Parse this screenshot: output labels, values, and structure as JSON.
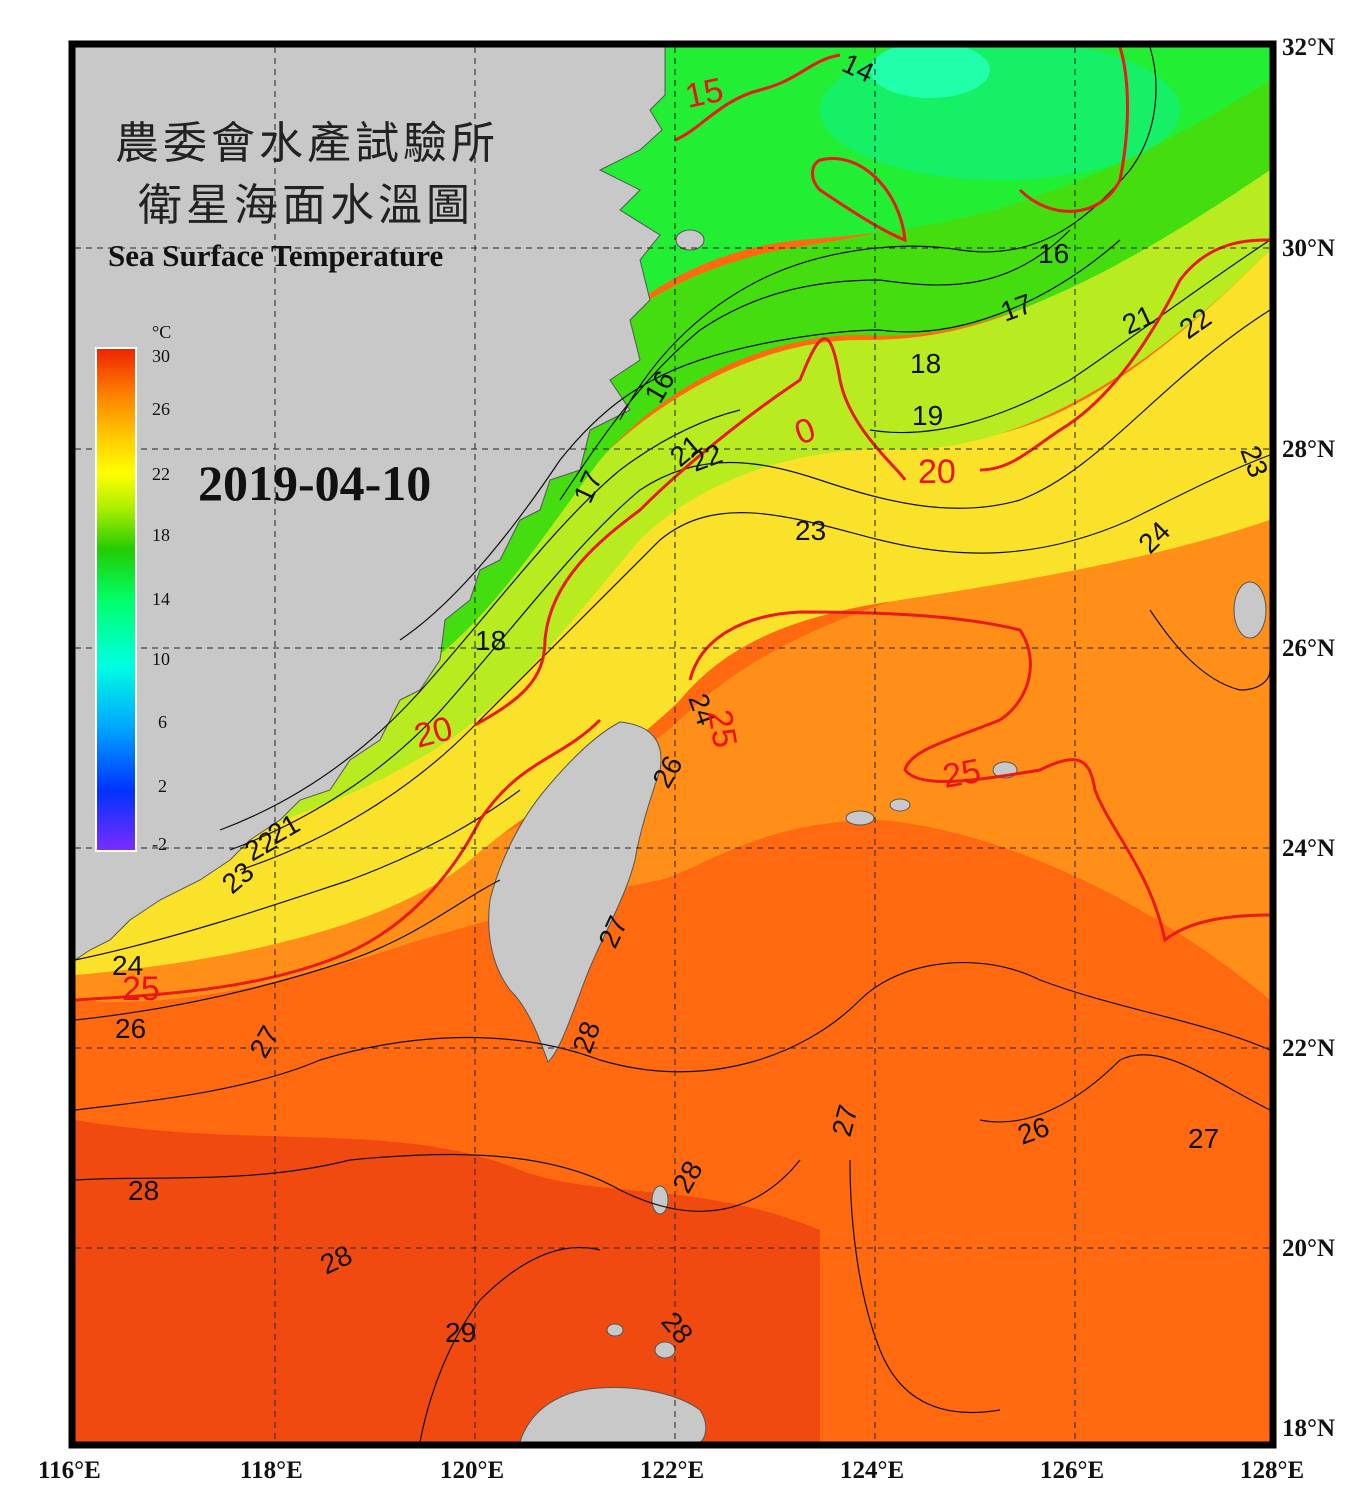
{
  "title": {
    "chinese_line1": "農委會水產試驗所",
    "chinese_line2": "衛星海面水溫圖",
    "english": "Sea Surface Temperature"
  },
  "date": "2019-04-10",
  "colorbar": {
    "unit": "°C",
    "labels": [
      "30",
      "26",
      "22",
      "18",
      "14",
      "10",
      "6",
      "2",
      "-2"
    ],
    "colors": [
      "#7b2cff",
      "#0033ff",
      "#00aaff",
      "#00ffe0",
      "#00ff66",
      "#22cc00",
      "#aaee00",
      "#ffff00",
      "#ffcc00",
      "#ff9900",
      "#ff5500",
      "#ee2200"
    ]
  },
  "axes": {
    "lon_labels": [
      "116°E",
      "118°E",
      "120°E",
      "122°E",
      "124°E",
      "126°E",
      "128°E"
    ],
    "lat_labels": [
      "32°N",
      "30°N",
      "28°N",
      "26°N",
      "24°N",
      "22°N",
      "20°N",
      "18°N"
    ]
  },
  "contour_labels": {
    "c14": "14",
    "c15": "15",
    "c16a": "16",
    "c16b": "16",
    "c17a": "17",
    "c17b": "17",
    "c18a": "18",
    "c18b": "18",
    "c19": "19",
    "c20a": "20",
    "c20b": "20",
    "c20c": "0",
    "c21a": "21",
    "c21b": "21",
    "c21c": "21",
    "c22a": "22",
    "c22b": "22",
    "c22c": "22",
    "c23a": "23",
    "c23b": "23",
    "c23c": "23",
    "c24a": "24",
    "c24b": "24",
    "c24c": "24",
    "c25a": "25",
    "c25b": "25",
    "c25c": "25",
    "c26a": "26",
    "c26b": "26",
    "c26c": "26",
    "c27a": "27",
    "c27b": "27",
    "c27c": "27",
    "c27d": "27",
    "c28a": "28",
    "c28b": "28",
    "c28c": "28",
    "c28d": "28",
    "c28e": "28",
    "c29": "29"
  },
  "colors": {
    "land": "#c8c8c8",
    "warm_sea": "#ff6a10",
    "red_isotherm": "#e81a1a",
    "frame": "#000000"
  }
}
